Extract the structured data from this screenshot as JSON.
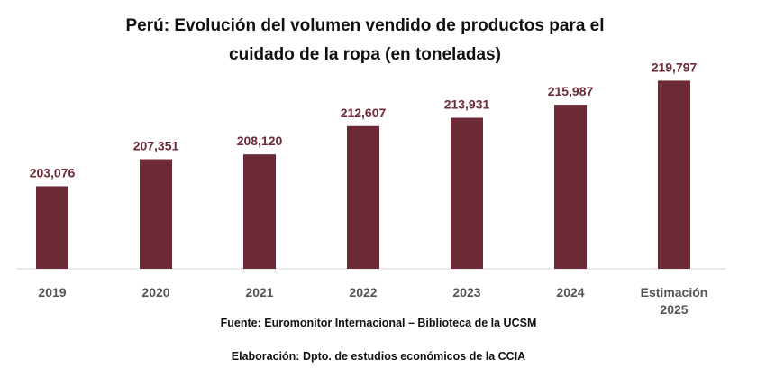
{
  "chart_data": {
    "type": "bar",
    "title_lines": [
      "Perú: Evolución del volumen vendido de productos para el",
      "cuidado de la ropa (en toneladas)"
    ],
    "categories": [
      "2019",
      "2020",
      "2021",
      "2022",
      "2023",
      "2024",
      "Estimación 2025"
    ],
    "values": [
      203076,
      207351,
      208120,
      212607,
      213931,
      215987,
      219797
    ],
    "data_labels": [
      "203,076",
      "207,351",
      "208,120",
      "212,607",
      "213,931",
      "215,987",
      "219,797"
    ],
    "bar_color": "#6b2a35",
    "grid": false,
    "legend": "none"
  },
  "footer": {
    "source": "Fuente: Euromonitor Internacional – Biblioteca de la UCSM",
    "credit": "Elaboración: Dpto. de estudios económicos de la CCIA"
  }
}
